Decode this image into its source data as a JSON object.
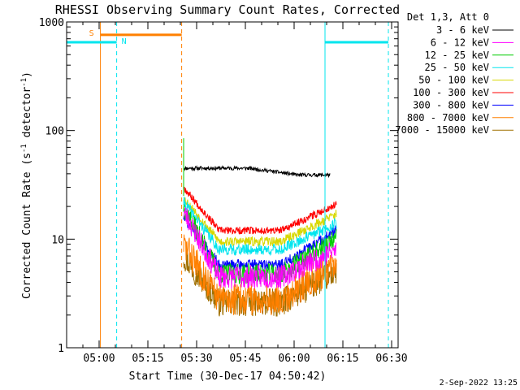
{
  "chart_data": {
    "type": "line",
    "title": "RHESSI Observing Summary Count Rates, Corrected",
    "xlabel": "Start Time (30-Dec-17 04:50:42)",
    "ylabel_main": "Corrected Count Rate (s",
    "ylabel_sup1": "-1",
    "ylabel_mid": " detector",
    "ylabel_sup2": "-1",
    "ylabel_end": ")",
    "yscale": "log",
    "ylim": [
      1,
      1000
    ],
    "xlim_minutes": [
      -6,
      96
    ],
    "x_origin": "04:56",
    "yticks": [
      {
        "value": 1,
        "label": "1"
      },
      {
        "value": 10,
        "label": "10"
      },
      {
        "value": 100,
        "label": "100"
      },
      {
        "value": 1000,
        "label": "1000"
      }
    ],
    "xticks": [
      {
        "value": 4,
        "label": "05:00"
      },
      {
        "value": 19,
        "label": "05:15"
      },
      {
        "value": 34,
        "label": "05:30"
      },
      {
        "value": 49,
        "label": "05:45"
      },
      {
        "value": 64,
        "label": "06:00"
      },
      {
        "value": 79,
        "label": "06:15"
      },
      {
        "value": 94,
        "label": "06:30"
      }
    ],
    "legend_header": "Det 1,3, Att 0",
    "series": [
      {
        "name": "3 - 6 keV",
        "color": "#000000",
        "start": 30,
        "end": 75,
        "shape": "flat",
        "base": 45,
        "min": 39,
        "noise": 0.04,
        "seed": 11
      },
      {
        "name": "6 - 12 keV",
        "color": "#ff00ff",
        "start": 30,
        "end": 77,
        "shape": "dip",
        "base": 18,
        "min": 4.5,
        "end_val": 8,
        "noise": 0.25,
        "seed": 23
      },
      {
        "name": "12 - 25 keV",
        "color": "#00cc00",
        "start": 30,
        "end": 77,
        "shape": "dip",
        "base": 20,
        "min": 4.8,
        "end_val": 10,
        "noise": 0.22,
        "seed": 37
      },
      {
        "name": "25 - 50 keV",
        "color": "#00e5ee",
        "start": 30,
        "end": 77,
        "shape": "dip",
        "base": 22,
        "min": 8,
        "end_val": 14,
        "noise": 0.12,
        "seed": 41
      },
      {
        "name": "50 - 100 keV",
        "color": "#d8d800",
        "start": 30,
        "end": 77,
        "shape": "dip",
        "base": 24,
        "min": 9.5,
        "end_val": 17,
        "noise": 0.1,
        "seed": 53
      },
      {
        "name": "100 - 300 keV",
        "color": "#ff0000",
        "start": 30,
        "end": 77,
        "shape": "dip",
        "base": 30,
        "min": 12,
        "end_val": 21,
        "noise": 0.08,
        "seed": 67
      },
      {
        "name": "300 - 800 keV",
        "color": "#0000ff",
        "start": 30,
        "end": 77,
        "shape": "dip",
        "base": 16,
        "min": 5.8,
        "end_val": 12,
        "noise": 0.12,
        "seed": 71
      },
      {
        "name": "800 - 7000 keV",
        "color": "#ff8000",
        "start": 30,
        "end": 77,
        "shape": "dip",
        "base": 9,
        "min": 2.8,
        "end_val": 6,
        "noise": 0.35,
        "seed": 83
      },
      {
        "name": "7000 - 15000 keV",
        "color": "#a07000",
        "start": 30,
        "end": 77,
        "shape": "dip",
        "base": 7,
        "min": 2.6,
        "end_val": 5,
        "noise": 0.3,
        "seed": 97
      }
    ],
    "annotations": {
      "saa_label": "S",
      "night_label": "N",
      "saa_bar": {
        "start": 4.4,
        "end": 29.4,
        "value": 760
      },
      "night_bars": [
        {
          "start": -6,
          "end": 9.4,
          "value": 650
        },
        {
          "start": 73.5,
          "end": 93,
          "value": 650
        }
      ],
      "cyan_solid_lines": [
        -6,
        73.5
      ],
      "cyan_dashed_lines": [
        9.4,
        93
      ],
      "orange_solid_lines": [
        4.4
      ],
      "orange_dashed_lines": [
        29.4
      ],
      "spike": {
        "x": 30,
        "value": 85
      }
    },
    "footer_date": "2-Sep-2022 13:25"
  },
  "colors": {
    "axis": "#000000",
    "night": "#00e5ee",
    "saa": "#ff8000"
  }
}
